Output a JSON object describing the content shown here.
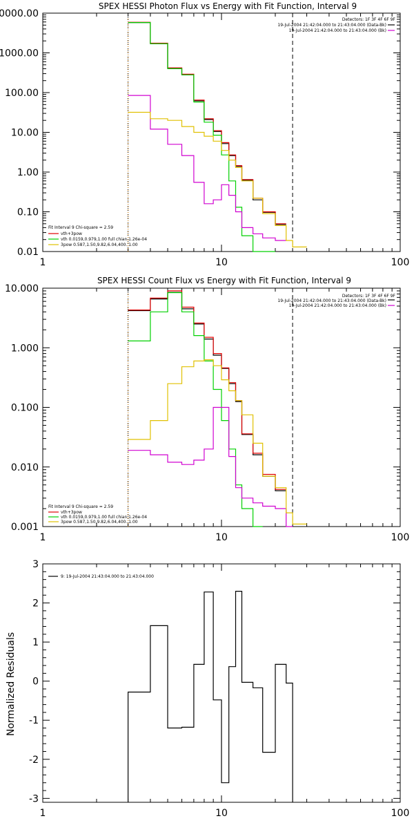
{
  "colors": {
    "black": "#000000",
    "red": "#e00000",
    "green": "#00d000",
    "magenta": "#d000d0",
    "yellow": "#e0c000",
    "orange_dot": "#e08000"
  },
  "chart_data": [
    {
      "type": "line",
      "title": "SPEX HESSI Photon Flux vs Energy with Fit Function, Interval 9",
      "xscale": "log",
      "yscale": "log",
      "xlim": [
        1,
        100
      ],
      "ylim": [
        0.01,
        10000
      ],
      "xticks": [
        "1",
        "10",
        "100"
      ],
      "yticks": [
        "10000.00",
        "1000.00",
        "100.00",
        "10.00",
        "1.00",
        "0.10",
        "0.01"
      ],
      "detectors": "Detectors: 1F 3F 4F 6F 9F",
      "bg_time": "19-Jul-2004 21:42:04.000 to 21:43:04.000 (Data-Bk)",
      "bk_time": "19-Jul-2004 21:42:04.000 to 21:43:04.000 (Bk)",
      "fit_info": "Fit Interval 9   Chi-square = 2.59",
      "legend": [
        "vth+3pow",
        "vth 0.0159,0.979,1.00  full chian 1.26e-04",
        "3pow 0.587,1.50,9.82,6.04,400.,1.00"
      ],
      "vlines": [
        {
          "x": 3,
          "style": "dotted"
        },
        {
          "x": 25,
          "style": "dashed"
        }
      ],
      "edges": [
        3,
        4,
        5,
        6,
        7,
        8,
        9,
        10,
        11,
        12,
        13,
        15,
        17,
        20,
        23,
        25,
        30
      ],
      "series": [
        {
          "color": "black",
          "values": [
            5800,
            1700,
            410,
            280,
            62,
            21,
            10.5,
            5.2,
            2.6,
            1.4,
            0.62,
            0.2,
            0.097,
            0.048
          ]
        },
        {
          "color": "red",
          "values": [
            5900,
            1750,
            420,
            290,
            65,
            22,
            11,
            5.5,
            2.7,
            1.45,
            0.65,
            0.22,
            0.1,
            0.05
          ]
        },
        {
          "color": "green",
          "values": [
            5800,
            1700,
            400,
            280,
            58,
            18,
            8.5,
            2.7,
            0.6,
            0.13,
            0.025,
            0.008,
            0.008
          ]
        },
        {
          "color": "magenta",
          "values": [
            85,
            12,
            5,
            2.6,
            0.55,
            0.16,
            0.2,
            0.48,
            0.26,
            0.1,
            0.04,
            0.028,
            0.022,
            0.019
          ]
        },
        {
          "color": "yellow",
          "values": [
            32,
            22,
            20,
            14,
            10,
            8,
            6,
            3.5,
            2,
            1.3,
            0.6,
            0.22,
            0.09,
            0.045,
            0.019,
            0.013
          ]
        }
      ]
    },
    {
      "type": "line",
      "title": "SPEX HESSI Count Flux vs Energy with Fit Function, Interval 9",
      "xscale": "log",
      "yscale": "log",
      "xlim": [
        1,
        100
      ],
      "ylim": [
        0.001,
        10
      ],
      "xticks": [
        "1",
        "10",
        "100"
      ],
      "yticks": [
        "10.000",
        "1.000",
        "0.100",
        "0.010",
        "0.001"
      ],
      "detectors": "Detectors: 1F 3F 4F 6F 9F",
      "bg_time": "19-Jul-2004 21:42:04.000 to 21:43:04.000 (Data-Bk)",
      "bk_time": "19-Jul-2004 21:42:04.000 to 21:43:04.000 (Bk)",
      "fit_info": "Fit Interval 9   Chi-square = 2.59",
      "legend": [
        "vth+3pow",
        "vth 0.0159,0.979,1.00  full chian 1.26e-04",
        "3pow 0.587,1.50,9.82,6.04,400.,1.00"
      ],
      "vlines": [
        {
          "x": 3,
          "style": "dotted"
        },
        {
          "x": 25,
          "style": "dashed"
        }
      ],
      "edges": [
        3,
        4,
        5,
        6,
        7,
        8,
        9,
        10,
        11,
        12,
        13,
        15,
        17,
        20,
        23,
        25,
        30
      ],
      "series": [
        {
          "color": "black",
          "values": [
            4.2,
            6.6,
            8.5,
            4.5,
            2.5,
            1.4,
            0.75,
            0.45,
            0.25,
            0.125,
            0.035,
            0.016,
            0.007,
            0.004
          ]
        },
        {
          "color": "red",
          "values": [
            4.3,
            6.8,
            9,
            4.8,
            2.6,
            1.5,
            0.8,
            0.46,
            0.26,
            0.13,
            0.036,
            0.017,
            0.0075,
            0.0042
          ]
        },
        {
          "color": "green",
          "values": [
            1.3,
            4,
            8.4,
            4,
            1.6,
            0.6,
            0.2,
            0.06,
            0.02,
            0.005,
            0.002,
            0.0008
          ]
        },
        {
          "color": "magenta",
          "values": [
            0.019,
            0.016,
            0.012,
            0.011,
            0.013,
            0.02,
            0.1,
            0.1,
            0.015,
            0.0045,
            0.003,
            0.0025,
            0.0022,
            0.002,
            0.0007
          ]
        },
        {
          "color": "yellow",
          "values": [
            0.029,
            0.06,
            0.25,
            0.48,
            0.6,
            0.63,
            0.5,
            0.29,
            0.19,
            0.13,
            0.075,
            0.025,
            0.007,
            0.0045,
            0.0017,
            0.0011
          ]
        }
      ]
    },
    {
      "type": "line",
      "title": "",
      "xscale": "log",
      "yscale": "linear",
      "xlim": [
        1,
        100
      ],
      "ylim": [
        -3.1,
        3
      ],
      "xticks": [
        "1",
        "10",
        "100"
      ],
      "yticks": [
        "3",
        "2",
        "1",
        "0",
        "-1",
        "-2",
        "-3"
      ],
      "ylabel": "Normalized Residuals",
      "legend_entry": "9: 19-Jul-2004 21:43:04.000 to 21:43:04.000",
      "edges": [
        3,
        4,
        5,
        6,
        7,
        8,
        9,
        10,
        11,
        12,
        13,
        15,
        17,
        20,
        23,
        25
      ],
      "series": [
        {
          "color": "black",
          "values": [
            -0.28,
            1.42,
            -1.2,
            -1.18,
            0.43,
            2.28,
            -0.48,
            -2.6,
            0.37,
            2.3,
            -0.03,
            -0.17,
            -1.82,
            0.43,
            -0.05
          ]
        }
      ]
    }
  ]
}
